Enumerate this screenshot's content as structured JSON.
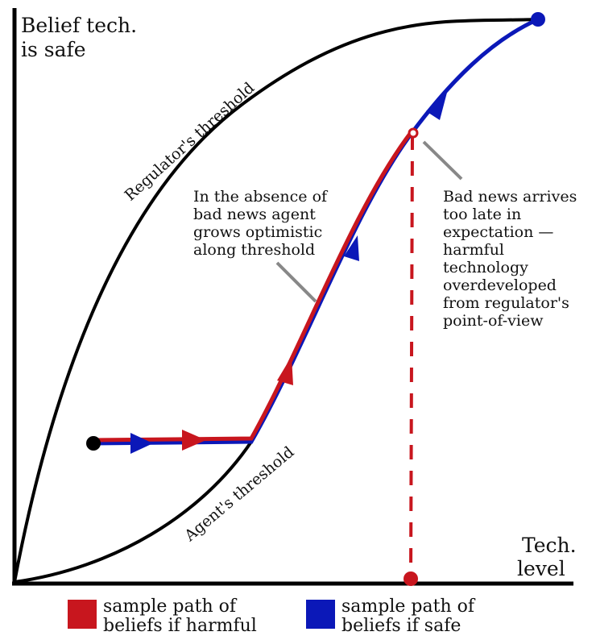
{
  "axes": {
    "y_label_lines": [
      "Belief tech.",
      "is safe"
    ],
    "x_label_lines": [
      "Tech.",
      "level"
    ]
  },
  "curves": {
    "regulator_label": "Regulator's threshold",
    "agent_label": "Agent's threshold"
  },
  "annotations": {
    "absence": [
      "In the absence of",
      "bad news agent",
      "grows optimistic",
      "along threshold"
    ],
    "bad_news": [
      "Bad news arrives",
      "too late in",
      "expectation —",
      "harmful",
      "technology",
      "overdeveloped",
      "from regulator's",
      "point-of-view"
    ]
  },
  "legend": {
    "harmful": [
      "sample path of",
      "beliefs if harmful"
    ],
    "safe": [
      "sample path of",
      "beliefs if safe"
    ]
  },
  "colors": {
    "harmful": "#c8161e",
    "safe": "#0b18b8",
    "curve": "#000000",
    "pointer": "#888888"
  }
}
